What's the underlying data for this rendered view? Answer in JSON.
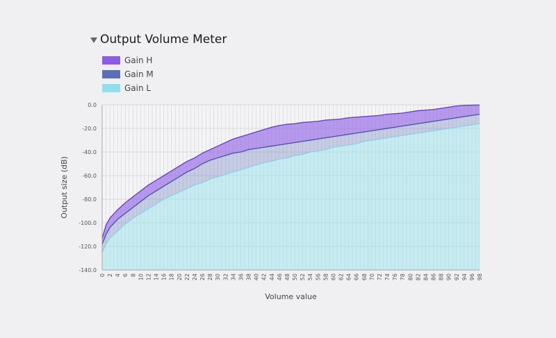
{
  "panel": {
    "title": "Output Volume Meter"
  },
  "chart_data": {
    "type": "area",
    "title": "Output Volume Meter",
    "xlabel": "Volume value",
    "ylabel": "Output size (dB)",
    "xlim": [
      0,
      98
    ],
    "ylim": [
      -140,
      0
    ],
    "x_ticks": [
      0,
      2,
      4,
      6,
      8,
      10,
      12,
      14,
      16,
      18,
      20,
      22,
      24,
      26,
      28,
      30,
      32,
      34,
      36,
      38,
      40,
      42,
      44,
      46,
      48,
      50,
      52,
      54,
      56,
      58,
      60,
      62,
      64,
      66,
      68,
      70,
      72,
      74,
      76,
      78,
      80,
      82,
      84,
      86,
      88,
      90,
      92,
      94,
      96,
      98
    ],
    "y_ticks": [
      0,
      -20,
      -40,
      -60,
      -80,
      -100,
      -120,
      -140
    ],
    "y_tick_labels": [
      "0.0",
      "-20.0",
      "-40.0",
      "-60.0",
      "-80.0",
      "-100.0",
      "-120.0",
      "-140.0"
    ],
    "grid": true,
    "legend_position": "top-left",
    "x": [
      0,
      1,
      2,
      4,
      6,
      8,
      10,
      12,
      14,
      16,
      18,
      20,
      22,
      24,
      26,
      28,
      30,
      32,
      34,
      36,
      38,
      40,
      42,
      44,
      46,
      48,
      50,
      52,
      54,
      56,
      58,
      60,
      62,
      64,
      66,
      68,
      70,
      72,
      74,
      76,
      78,
      80,
      82,
      84,
      86,
      88,
      90,
      92,
      94,
      96,
      98
    ],
    "series": [
      {
        "name": "Gain H",
        "color": "#8c5ce6",
        "values": [
          -113,
          -102,
          -96,
          -89,
          -83,
          -78,
          -73,
          -68,
          -64,
          -60,
          -56,
          -52,
          -48,
          -45,
          -41,
          -38,
          -35,
          -32,
          -29,
          -27,
          -25,
          -23,
          -21,
          -19,
          -17.5,
          -16.5,
          -16,
          -15,
          -14.5,
          -14,
          -13,
          -12.5,
          -12,
          -11,
          -10.5,
          -10,
          -9.5,
          -9,
          -8,
          -7.5,
          -7,
          -6,
          -5,
          -4.5,
          -4,
          -3,
          -2,
          -1,
          -0.5,
          -0.3,
          -0.2
        ]
      },
      {
        "name": "Gain M",
        "color": "#5a6fb5",
        "values": [
          -118,
          -110,
          -104,
          -97,
          -92,
          -87,
          -82,
          -77,
          -73,
          -69,
          -65,
          -61,
          -57,
          -54,
          -50,
          -47,
          -45,
          -43,
          -41,
          -40,
          -38,
          -37,
          -36,
          -35,
          -34,
          -33,
          -32,
          -31,
          -30,
          -29,
          -28,
          -27,
          -26,
          -25,
          -24,
          -23,
          -22,
          -21,
          -20,
          -19,
          -18,
          -17,
          -16,
          -15,
          -14,
          -13,
          -12,
          -11,
          -10,
          -9,
          -8
        ]
      },
      {
        "name": "Gain L",
        "color": "#8fe0ec",
        "values": [
          -125,
          -118,
          -113,
          -107,
          -101,
          -96,
          -92,
          -88,
          -84,
          -80,
          -77,
          -74,
          -71,
          -68,
          -66,
          -63,
          -61,
          -59,
          -57,
          -55,
          -53,
          -51,
          -49,
          -48,
          -46,
          -45,
          -43,
          -42,
          -40,
          -39,
          -38,
          -36,
          -35,
          -34,
          -33,
          -31,
          -30,
          -29,
          -28,
          -27,
          -26,
          -25,
          -24,
          -23,
          -22,
          -21,
          -20,
          -19,
          -18,
          -17,
          -16
        ]
      }
    ]
  }
}
